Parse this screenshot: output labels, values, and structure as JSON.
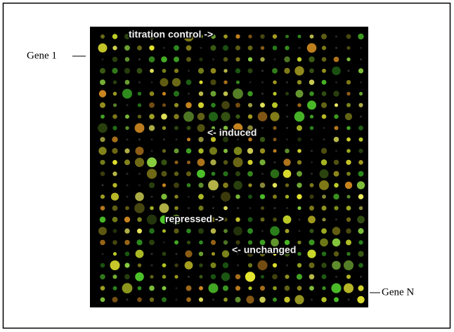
{
  "gene_labels": {
    "first": "Gene 1",
    "last": "Gene N"
  },
  "annotations": {
    "titration": "titration control ->",
    "induced": "<- induced",
    "repressed": "repressed ->",
    "unchanged": "<- unchanged"
  }
}
